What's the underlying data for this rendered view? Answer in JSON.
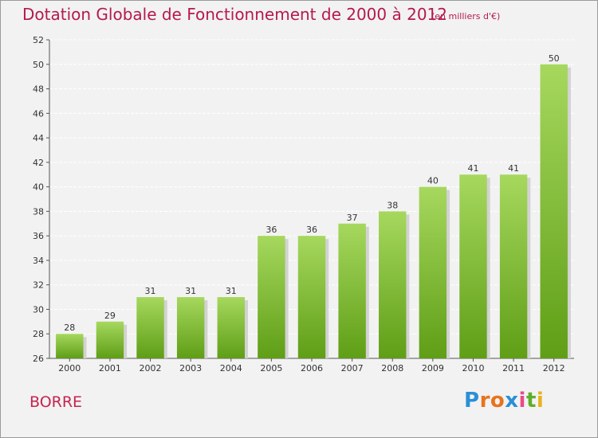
{
  "header": {
    "title": "Dotation Globale de Fonctionnement de 2000 à 2012",
    "unit_note": "(en milliers d'€)"
  },
  "footer": {
    "town": "BORRE",
    "logo": {
      "letters": [
        "P",
        "r",
        "o",
        "x",
        "i",
        "t",
        "i"
      ],
      "colors": [
        "#2b8fd6",
        "#e8731b",
        "#e8731b",
        "#2b8fd6",
        "#e84b8a",
        "#5fae2a",
        "#e8b21b"
      ]
    }
  },
  "colors": {
    "bar_top": "#a6d85e",
    "bar_bottom": "#5f9e16",
    "shadow": "#d2d2d2",
    "grid": "#ffffff",
    "title": "#b5194f"
  },
  "chart_data": {
    "type": "bar",
    "title": "Dotation Globale de Fonctionnement de 2000 à 2012",
    "subtitle": "(en milliers d'€)",
    "categories": [
      "2000",
      "2001",
      "2002",
      "2003",
      "2004",
      "2005",
      "2006",
      "2007",
      "2008",
      "2009",
      "2010",
      "2011",
      "2012"
    ],
    "values": [
      28,
      29,
      31,
      31,
      31,
      36,
      36,
      37,
      38,
      40,
      41,
      41,
      50
    ],
    "ylim": [
      26,
      52
    ],
    "yticks": [
      26,
      28,
      30,
      32,
      34,
      36,
      38,
      40,
      42,
      44,
      46,
      48,
      50,
      52
    ],
    "grid": true,
    "data_labels": true
  }
}
